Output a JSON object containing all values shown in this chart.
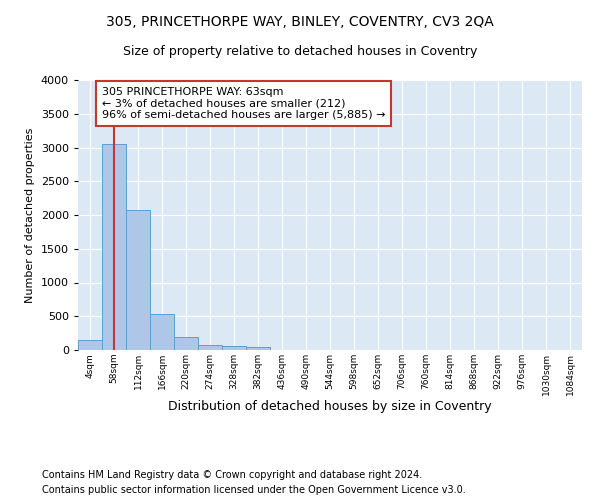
{
  "title1": "305, PRINCETHORPE WAY, BINLEY, COVENTRY, CV3 2QA",
  "title2": "Size of property relative to detached houses in Coventry",
  "xlabel": "Distribution of detached houses by size in Coventry",
  "ylabel": "Number of detached properties",
  "footnote1": "Contains HM Land Registry data © Crown copyright and database right 2024.",
  "footnote2": "Contains public sector information licensed under the Open Government Licence v3.0.",
  "bar_labels": [
    "4sqm",
    "58sqm",
    "112sqm",
    "166sqm",
    "220sqm",
    "274sqm",
    "328sqm",
    "382sqm",
    "436sqm",
    "490sqm",
    "544sqm",
    "598sqm",
    "652sqm",
    "706sqm",
    "760sqm",
    "814sqm",
    "868sqm",
    "922sqm",
    "976sqm",
    "1030sqm",
    "1084sqm"
  ],
  "bar_values": [
    150,
    3050,
    2080,
    540,
    195,
    75,
    55,
    40,
    0,
    0,
    0,
    0,
    0,
    0,
    0,
    0,
    0,
    0,
    0,
    0,
    0
  ],
  "bar_color": "#aec6e8",
  "bar_edge_color": "#5a9fd4",
  "vline_x": 1.0,
  "vline_color": "#c0392b",
  "annotation_text": "305 PRINCETHORPE WAY: 63sqm\n← 3% of detached houses are smaller (212)\n96% of semi-detached houses are larger (5,885) →",
  "annotation_box_color": "#c0392b",
  "annotation_fill": "white",
  "ylim": [
    0,
    4000
  ],
  "bg_color": "#dde8f5",
  "grid_color": "white",
  "title1_fontsize": 10,
  "title2_fontsize": 9,
  "xlabel_fontsize": 9,
  "ylabel_fontsize": 8,
  "annotation_fontsize": 8,
  "footnote_fontsize": 7
}
